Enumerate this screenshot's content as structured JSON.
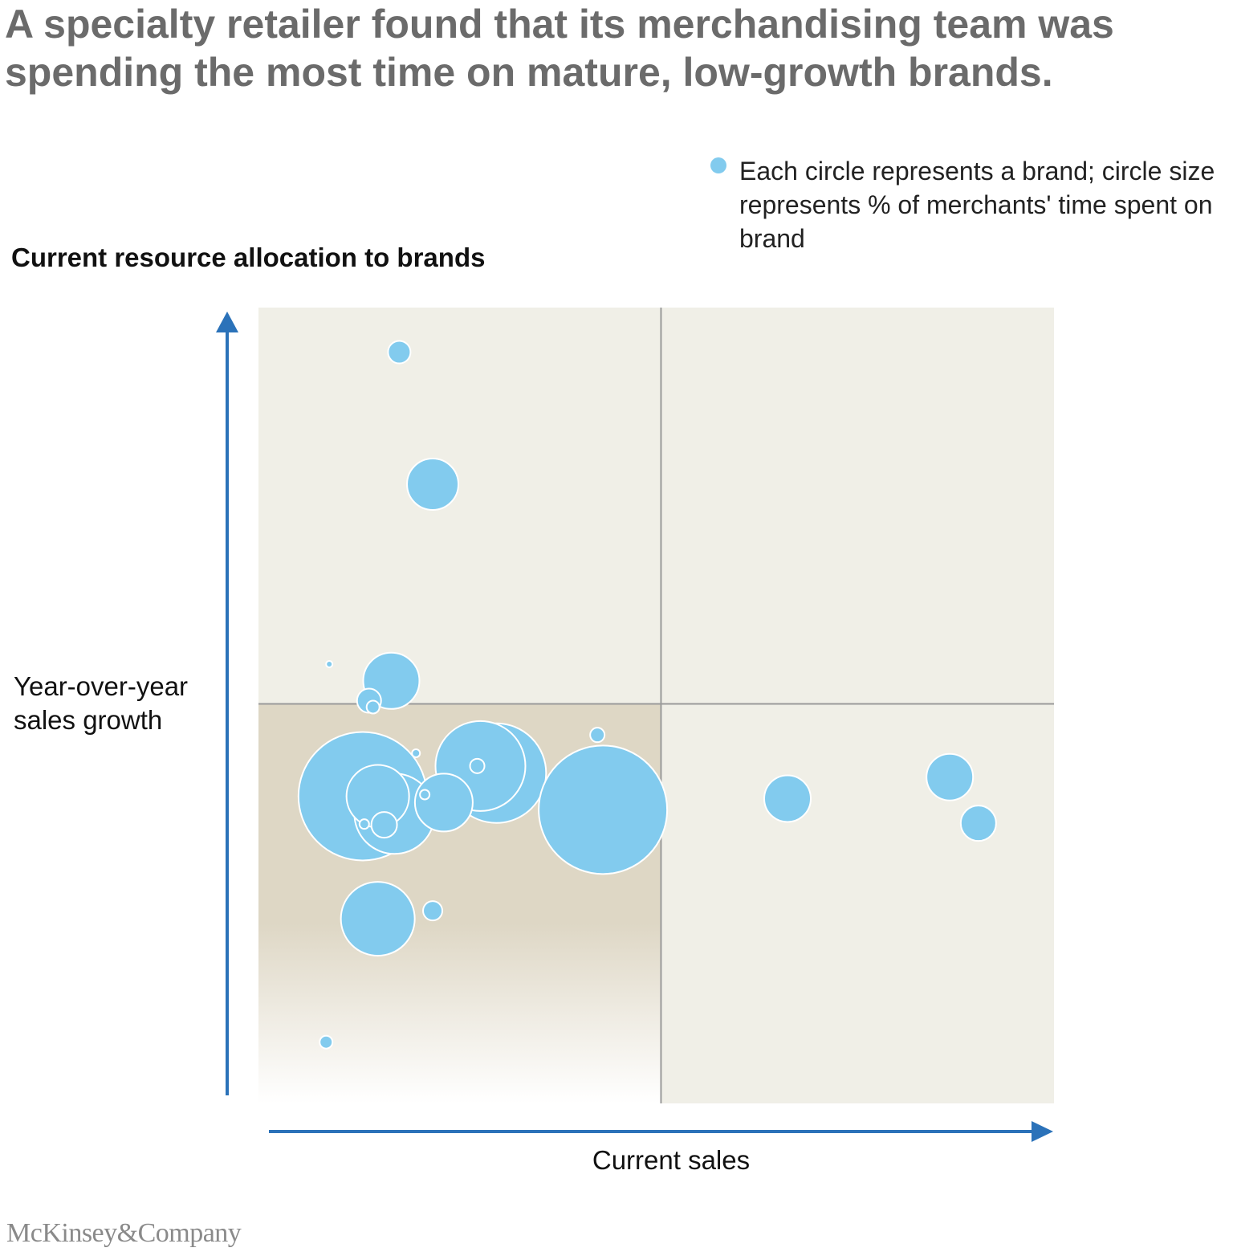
{
  "headline": "A specialty retailer found that its merchandising team was spending the most time on mature, low-growth brands.",
  "legend": {
    "text": "Each circle represents a brand; circle size represents % of merchants' time spent on brand",
    "marker_color": "#82cbee"
  },
  "colors": {
    "bubble_fill": "#82cbee",
    "bubble_stroke": "#ffffff",
    "plot_background": "#f0efe7",
    "highlight_quadrant": "#ded7c5",
    "divider": "#9a9a9a",
    "axis_arrow": "#2b72b9",
    "headline": "#6b6b6b"
  },
  "chart_data": {
    "type": "bubble",
    "title": "Current resource allocation to brands",
    "xlabel": "Current sales",
    "ylabel": "Year-over-year sales growth",
    "xlim": [
      0,
      100
    ],
    "ylim": [
      0,
      100
    ],
    "quadrant_split": {
      "x": 50.6,
      "y": 50.2
    },
    "highlighted_quadrant": "bottom-left",
    "size_unit": "relative % of merchants' time (radius)",
    "points": [
      {
        "x": 17.7,
        "y": 94.4,
        "size": 14
      },
      {
        "x": 21.9,
        "y": 77.8,
        "size": 32
      },
      {
        "x": 8.9,
        "y": 55.2,
        "size": 4
      },
      {
        "x": 16.7,
        "y": 53.1,
        "size": 35
      },
      {
        "x": 13.9,
        "y": 50.6,
        "size": 15
      },
      {
        "x": 14.4,
        "y": 49.8,
        "size": 8
      },
      {
        "x": 19.8,
        "y": 44.0,
        "size": 5
      },
      {
        "x": 42.6,
        "y": 46.3,
        "size": 9
      },
      {
        "x": 13.1,
        "y": 38.6,
        "size": 80
      },
      {
        "x": 17.1,
        "y": 36.4,
        "size": 50
      },
      {
        "x": 15.0,
        "y": 38.6,
        "size": 39
      },
      {
        "x": 29.9,
        "y": 41.5,
        "size": 62
      },
      {
        "x": 27.9,
        "y": 42.4,
        "size": 56
      },
      {
        "x": 27.5,
        "y": 42.4,
        "size": 9
      },
      {
        "x": 23.3,
        "y": 37.8,
        "size": 36
      },
      {
        "x": 20.9,
        "y": 38.8,
        "size": 6
      },
      {
        "x": 15.8,
        "y": 35.0,
        "size": 16
      },
      {
        "x": 13.3,
        "y": 35.1,
        "size": 6
      },
      {
        "x": 43.3,
        "y": 36.9,
        "size": 80
      },
      {
        "x": 66.5,
        "y": 38.3,
        "size": 29
      },
      {
        "x": 86.9,
        "y": 41.0,
        "size": 29
      },
      {
        "x": 90.5,
        "y": 35.2,
        "size": 22
      },
      {
        "x": 15.0,
        "y": 23.2,
        "size": 46
      },
      {
        "x": 21.9,
        "y": 24.2,
        "size": 12
      },
      {
        "x": 8.5,
        "y": 7.7,
        "size": 8
      }
    ]
  },
  "footer": {
    "logo_text": "McKinsey&Company"
  }
}
